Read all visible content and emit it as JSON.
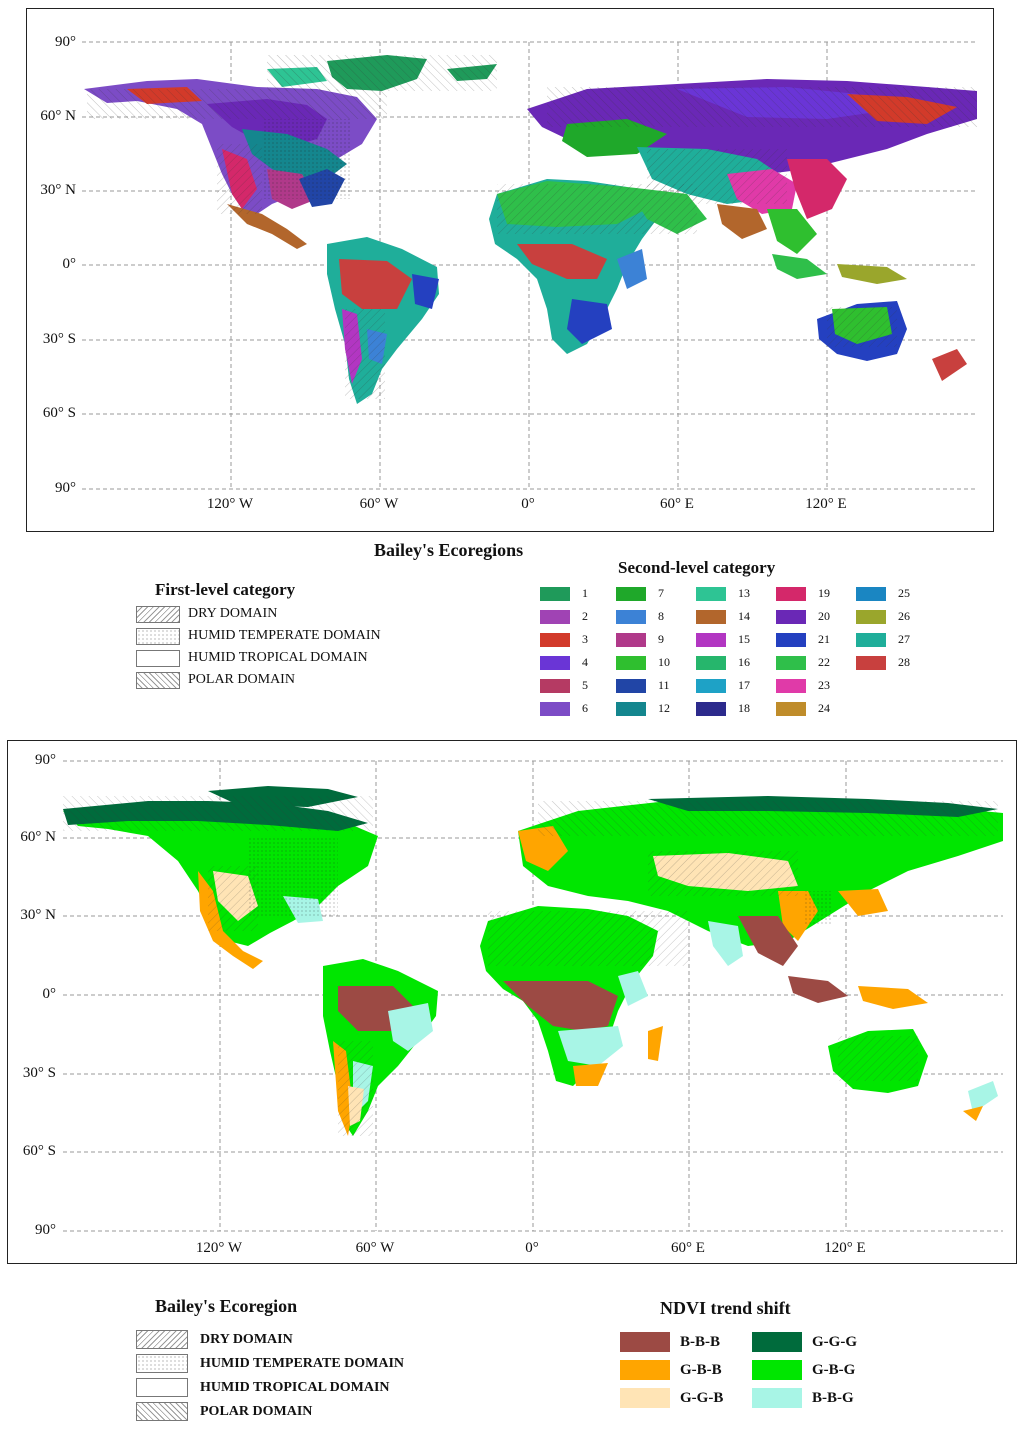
{
  "top_map": {
    "lat_labels": [
      "90°",
      "60° N",
      "30° N",
      "0°",
      "30° S",
      "60° S",
      "90°"
    ],
    "lon_labels": [
      "120° W",
      "60° W",
      "0°",
      "60° E",
      "120° E"
    ],
    "legend_title": "Bailey's Ecoregions",
    "first_level_title": "First-level category",
    "first_level": [
      "DRY DOMAIN",
      "HUMID TEMPERATE DOMAIN",
      "HUMID TROPICAL DOMAIN",
      "POLAR DOMAIN"
    ],
    "second_level_title": "Second-level category",
    "second_level": [
      {
        "label": "1",
        "color": "#1f9a5a"
      },
      {
        "label": "2",
        "color": "#a043b4"
      },
      {
        "label": "3",
        "color": "#d23a2a"
      },
      {
        "label": "4",
        "color": "#6a35d6"
      },
      {
        "label": "5",
        "color": "#b53a63"
      },
      {
        "label": "6",
        "color": "#7c4cc6"
      },
      {
        "label": "7",
        "color": "#1fa82a"
      },
      {
        "label": "8",
        "color": "#3c82d6"
      },
      {
        "label": "9",
        "color": "#b0398a"
      },
      {
        "label": "10",
        "color": "#2fbf2f"
      },
      {
        "label": "11",
        "color": "#2145a6"
      },
      {
        "label": "12",
        "color": "#14868e"
      },
      {
        "label": "13",
        "color": "#2ec494"
      },
      {
        "label": "14",
        "color": "#b2662c"
      },
      {
        "label": "15",
        "color": "#b236c2"
      },
      {
        "label": "16",
        "color": "#26b66c"
      },
      {
        "label": "17",
        "color": "#1ea2c6"
      },
      {
        "label": "18",
        "color": "#2c2a8c"
      },
      {
        "label": "19",
        "color": "#d4286a"
      },
      {
        "label": "20",
        "color": "#6a28b6"
      },
      {
        "label": "21",
        "color": "#2440c0"
      },
      {
        "label": "22",
        "color": "#2fbf4a"
      },
      {
        "label": "23",
        "color": "#e03aa8"
      },
      {
        "label": "24",
        "color": "#bf8c2a"
      },
      {
        "label": "25",
        "color": "#1a86c2"
      },
      {
        "label": "26",
        "color": "#9aa62c"
      },
      {
        "label": "27",
        "color": "#1fae9a"
      },
      {
        "label": "28",
        "color": "#c8403e"
      }
    ]
  },
  "bottom_map": {
    "lat_labels": [
      "90°",
      "60° N",
      "30° N",
      "0°",
      "30° S",
      "60° S",
      "90°"
    ],
    "lon_labels": [
      "120° W",
      "60° W",
      "0°",
      "60° E",
      "120° E"
    ],
    "ecoregion_title": "Bailey's Ecoregion",
    "domains": [
      "DRY DOMAIN",
      "HUMID TEMPERATE DOMAIN",
      "HUMID TROPICAL DOMAIN",
      "POLAR DOMAIN"
    ],
    "ndvi_title": "NDVI trend shift",
    "ndvi": [
      {
        "label": "B-B-B",
        "color": "#9c4a44"
      },
      {
        "label": "G-B-B",
        "color": "#ffa500"
      },
      {
        "label": "G-G-B",
        "color": "#ffe4b5"
      },
      {
        "label": "G-G-G",
        "color": "#006b3c"
      },
      {
        "label": "G-B-G",
        "color": "#00e600"
      },
      {
        "label": "B-B-G",
        "color": "#a8f5e6"
      }
    ]
  }
}
